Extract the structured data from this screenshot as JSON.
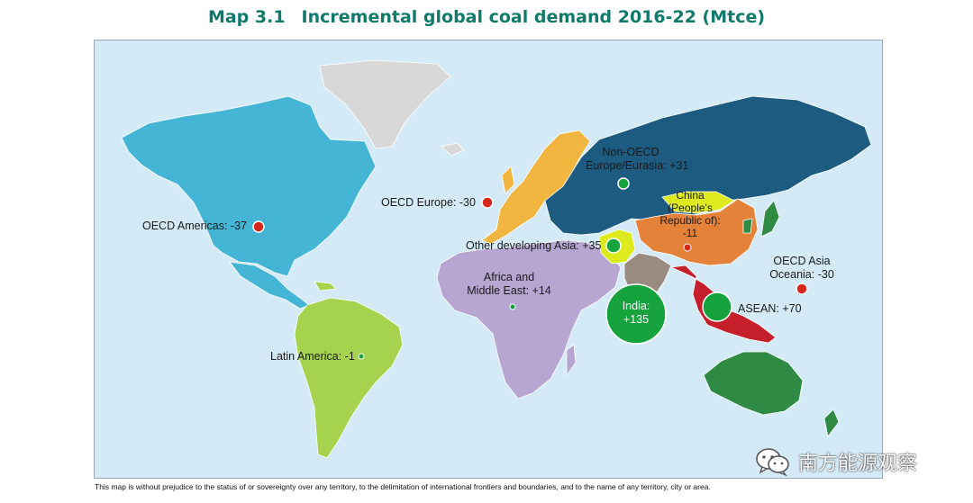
{
  "title": {
    "number": "Map 3.1",
    "text": "Incremental global coal demand 2016-22 (Mtce)"
  },
  "regions": {
    "oecd_americas": {
      "label": "OECD Americas: -37",
      "color": "#45b5d6"
    },
    "latin_america": {
      "label": "Latin America: -1",
      "color": "#a6d34e"
    },
    "oecd_europe": {
      "label": "OECD Europe: -30",
      "color": "#f0b640"
    },
    "non_oecd_eurasia": {
      "line1": "Non-OECD",
      "line2": "Europe/Eurasia: +31",
      "color": "#1e5b80"
    },
    "africa_me": {
      "line1": "Africa and",
      "line2": "Middle East: +14",
      "color": "#b7a5d2"
    },
    "other_dev_asia": {
      "label": "Other developing Asia: +35",
      "color": "#ddea1e"
    },
    "china": {
      "line1": "China",
      "line2": "(People's",
      "line3": "Republic of):",
      "line4": "-11",
      "color": "#e5823a"
    },
    "india": {
      "line1": "India:",
      "line2": "+135",
      "color": "#998b82"
    },
    "asean": {
      "label": "ASEAN: +70",
      "color": "#c51f2b"
    },
    "oecd_asia_oceania": {
      "line1": "OECD Asia",
      "line2": "Oceania: -30",
      "color": "#2f8a43"
    },
    "greenland": {
      "color": "#d8d8d8"
    }
  },
  "markers": {
    "increase_color": "#16a23d",
    "decrease_color": "#d7261c"
  },
  "disclaimer": "This map is without prejudice to the status of or sovereignty over any territory, to the delimitation of international frontiers and boundaries, and to the name of any territory, city or area.",
  "watermark": {
    "text": "南方能源观察",
    "icon": "wechat-icon"
  }
}
